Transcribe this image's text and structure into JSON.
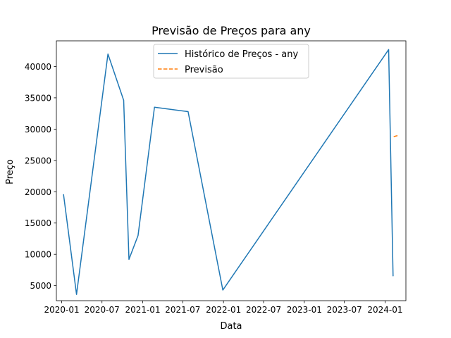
{
  "chart_data": {
    "type": "line",
    "title": "Previsão de Preços para any",
    "xlabel": "Data",
    "ylabel": "Preço",
    "x_type": "date",
    "xlim": [
      "2019-12-08",
      "2024-04-04"
    ],
    "ylim": [
      2600,
      44100
    ],
    "xticks": [
      "2020-01",
      "2020-07",
      "2021-01",
      "2021-07",
      "2022-01",
      "2022-07",
      "2023-01",
      "2023-07",
      "2024-01"
    ],
    "yticks": [
      5000,
      10000,
      15000,
      20000,
      25000,
      30000,
      35000,
      40000
    ],
    "grid": false,
    "legend": {
      "position": "upper center"
    },
    "series": [
      {
        "name": "Histórico de Preços - any",
        "color": "#1f77b4",
        "style": "solid",
        "points": [
          {
            "x": "2020-01-09",
            "y": 19600
          },
          {
            "x": "2020-03-08",
            "y": 3600
          },
          {
            "x": "2020-07-28",
            "y": 42000
          },
          {
            "x": "2020-10-07",
            "y": 34600
          },
          {
            "x": "2020-10-31",
            "y": 9200
          },
          {
            "x": "2020-12-11",
            "y": 13000
          },
          {
            "x": "2021-02-23",
            "y": 33500
          },
          {
            "x": "2021-07-25",
            "y": 32800
          },
          {
            "x": "2021-12-29",
            "y": 4300
          },
          {
            "x": "2024-01-17",
            "y": 42700
          },
          {
            "x": "2024-02-06",
            "y": 6500
          }
        ]
      },
      {
        "name": "Previsão",
        "color": "#ff7f0e",
        "style": "dashed",
        "points": [
          {
            "x": "2024-02-09",
            "y": 28800
          },
          {
            "x": "2024-03-01",
            "y": 29000
          }
        ]
      }
    ]
  }
}
